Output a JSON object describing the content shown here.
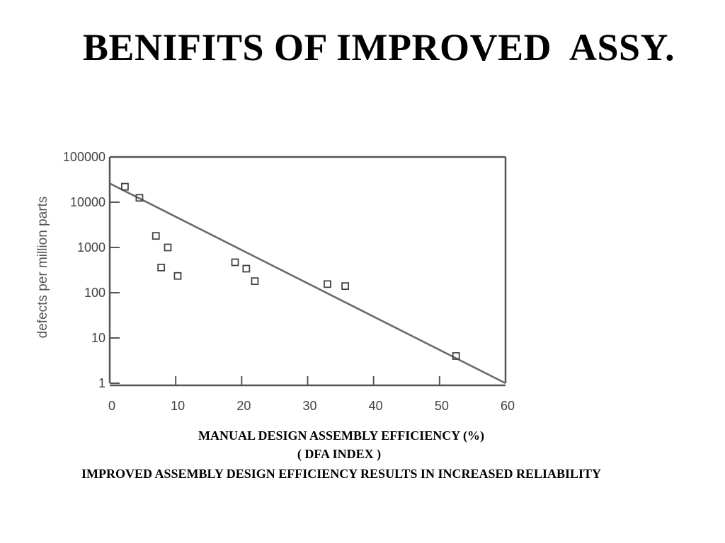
{
  "slide": {
    "title": "BENIFITS OF IMPROVED  ASSY.",
    "caption_line1": "MANUAL DESIGN ASSEMBLY EFFICIENCY (%)",
    "caption_line2": "( DFA INDEX )",
    "caption_line3": "IMPROVED ASSEMBLY DESIGN EFFICIENCY RESULTS IN INCREASED RELIABILITY"
  },
  "chart_data": {
    "type": "scatter",
    "title": "",
    "xlabel": "",
    "ylabel": "defects per million parts",
    "xlim": [
      0,
      60
    ],
    "ylim": [
      1,
      100000
    ],
    "y_scale": "log",
    "x_ticks": [
      0,
      10,
      20,
      30,
      40,
      50,
      60
    ],
    "y_ticks": [
      1,
      10,
      100,
      1000,
      10000,
      100000
    ],
    "y_tick_labels": [
      "1",
      "10",
      "100",
      "1000",
      "10000",
      "100000"
    ],
    "grid": false,
    "series": [
      {
        "marker": "open-square",
        "points": [
          {
            "x": 2.3,
            "y": 22000
          },
          {
            "x": 4.5,
            "y": 12500
          },
          {
            "x": 7.0,
            "y": 1800
          },
          {
            "x": 8.8,
            "y": 1000
          },
          {
            "x": 7.8,
            "y": 360
          },
          {
            "x": 10.3,
            "y": 235
          },
          {
            "x": 19.0,
            "y": 470
          },
          {
            "x": 20.7,
            "y": 340
          },
          {
            "x": 22.0,
            "y": 180
          },
          {
            "x": 33.0,
            "y": 155
          },
          {
            "x": 35.7,
            "y": 140
          },
          {
            "x": 52.5,
            "y": 4
          }
        ]
      }
    ],
    "trend_line": {
      "x": [
        0,
        60
      ],
      "y": [
        26000,
        1
      ]
    },
    "colors": {
      "axis": "#555555",
      "marker": "#444444",
      "line": "#6b6b6b"
    }
  }
}
